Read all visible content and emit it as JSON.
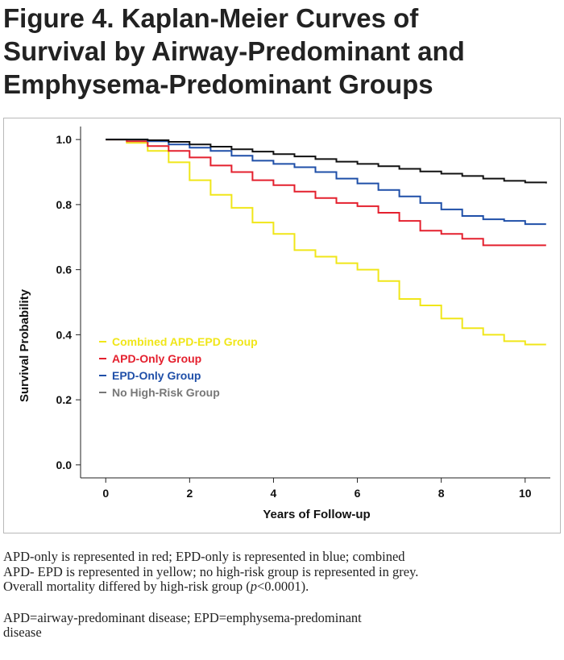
{
  "title": {
    "line1": "Figure 4. Kaplan-Meier Curves of",
    "line2": "Survival by Airway-Predominant and",
    "line3": "Emphysema-Predominant Groups"
  },
  "caption": {
    "line1": "APD-only is represented in red; EPD-only is represented in blue; combined",
    "line2": "APD- EPD is represented in yellow; no high-risk group is represented in grey.",
    "line3_before": "Overall mortality differed by high-risk group (",
    "line3_italic": "p",
    "line3_after": "<0.0001).",
    "line4": "APD=airway-predominant disease; EPD=emphysema-predominant",
    "line5": "disease"
  },
  "chart_data": {
    "type": "line",
    "title": "",
    "xlabel": "Years of Follow-up",
    "ylabel": "Survival Probability",
    "xlim": [
      -0.6,
      10.6
    ],
    "ylim": [
      -0.04,
      1.04
    ],
    "xticks": [
      0,
      2,
      4,
      6,
      8,
      10
    ],
    "yticks": [
      0.0,
      0.2,
      0.4,
      0.6,
      0.8,
      1.0
    ],
    "xtick_labels": [
      "0",
      "2",
      "4",
      "6",
      "8",
      "10"
    ],
    "ytick_labels": [
      "0.0",
      "0.2",
      "0.4",
      "0.6",
      "0.8",
      "1.0"
    ],
    "grid": false,
    "legend_position": "inside lower-left",
    "series": [
      {
        "name": "Combined APD-EPD Group",
        "color": "#f0e619",
        "x": [
          0,
          0.5,
          1,
          1.5,
          2,
          2.5,
          3,
          3.5,
          4,
          4.5,
          5,
          5.5,
          6,
          6.5,
          7,
          7.5,
          8,
          8.5,
          9,
          9.5,
          10,
          10.5
        ],
        "y": [
          1.0,
          0.99,
          0.965,
          0.93,
          0.875,
          0.83,
          0.79,
          0.745,
          0.71,
          0.66,
          0.64,
          0.62,
          0.6,
          0.565,
          0.51,
          0.49,
          0.45,
          0.42,
          0.4,
          0.38,
          0.37,
          0.37
        ]
      },
      {
        "name": "APD-Only Group",
        "color": "#e4202e",
        "x": [
          0,
          0.5,
          1,
          1.5,
          2,
          2.5,
          3,
          3.5,
          4,
          4.5,
          5,
          5.5,
          6,
          6.5,
          7,
          7.5,
          8,
          8.5,
          9,
          9.5,
          10,
          10.5
        ],
        "y": [
          1.0,
          0.995,
          0.98,
          0.965,
          0.945,
          0.92,
          0.9,
          0.875,
          0.86,
          0.84,
          0.82,
          0.805,
          0.795,
          0.775,
          0.75,
          0.72,
          0.71,
          0.695,
          0.675,
          0.675,
          0.675,
          0.675
        ]
      },
      {
        "name": "EPD-Only Group",
        "color": "#1f4fa8",
        "x": [
          0,
          0.5,
          1,
          1.5,
          2,
          2.5,
          3,
          3.5,
          4,
          4.5,
          5,
          5.5,
          6,
          6.5,
          7,
          7.5,
          8,
          8.5,
          9,
          9.5,
          10,
          10.5
        ],
        "y": [
          1.0,
          1.0,
          0.995,
          0.985,
          0.975,
          0.965,
          0.95,
          0.935,
          0.925,
          0.915,
          0.9,
          0.88,
          0.865,
          0.845,
          0.825,
          0.805,
          0.785,
          0.765,
          0.755,
          0.75,
          0.74,
          0.74
        ]
      },
      {
        "name": "No High-Risk Group",
        "color": "#111111",
        "legend_color": "#777777",
        "x": [
          0,
          0.5,
          1,
          1.5,
          2,
          2.5,
          3,
          3.5,
          4,
          4.5,
          5,
          5.5,
          6,
          6.5,
          7,
          7.5,
          8,
          8.5,
          9,
          9.5,
          10,
          10.5
        ],
        "y": [
          1.0,
          1.0,
          0.998,
          0.993,
          0.985,
          0.978,
          0.97,
          0.963,
          0.955,
          0.948,
          0.94,
          0.932,
          0.925,
          0.918,
          0.91,
          0.902,
          0.895,
          0.888,
          0.88,
          0.873,
          0.868,
          0.865
        ]
      }
    ]
  }
}
